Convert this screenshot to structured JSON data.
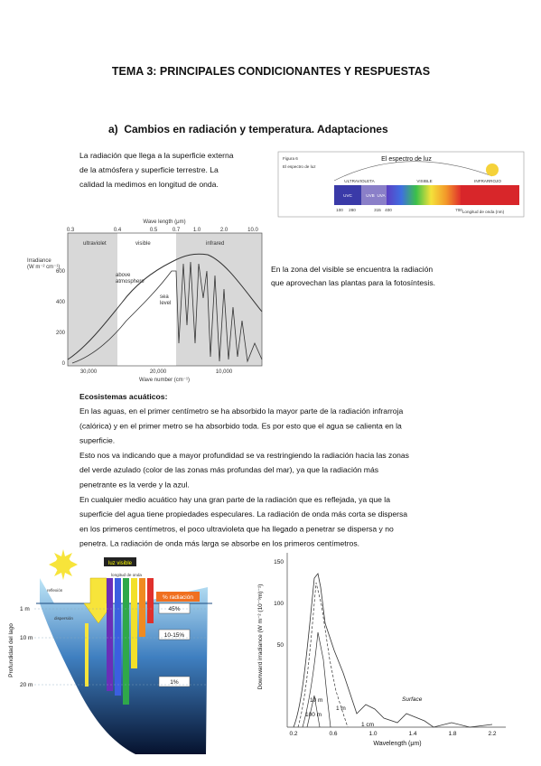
{
  "header": {
    "title": "TEMA 3: PRINCIPALES CONDICIONANTES Y RESPUESTAS"
  },
  "section": {
    "title": "a)  Cambios en radiación y temperatura. Adaptaciones"
  },
  "intro": {
    "lines": [
      "La radiación que llega a la superficie externa",
      "de la atmósfera y superficie terrestre. La",
      "calidad la medimos en longitud de onda."
    ]
  },
  "spectrum_figure": {
    "label": "Figura 6",
    "side_label": "El espectro de luz",
    "title": "El espectro de luz",
    "bands": [
      "ULTRAVIOLETA",
      "VISIBLE",
      "INFRARROJO"
    ],
    "uv_parts": [
      "UVC",
      "UVB",
      "UVA"
    ],
    "ticks": [
      "100",
      "280",
      "315",
      "400",
      "700"
    ],
    "axis_label": "Longitud de onda (nm)"
  },
  "irradiance_figure": {
    "top_axis_label": "Wave length (μm)",
    "top_ticks": [
      "0.3",
      "0.4",
      "0.5",
      "0.7",
      "1.0",
      "2.0",
      "10.0"
    ],
    "y_axis_label": [
      "Irradiance",
      "(W m⁻² cm⁻¹)"
    ],
    "y_ticks": [
      "600",
      "400",
      "200",
      "0"
    ],
    "regions": [
      "ultraviolet",
      "visible",
      "infrared"
    ],
    "curve_labels": [
      [
        "above",
        "atmosphere"
      ],
      [
        "sea",
        "level"
      ]
    ],
    "bottom_ticks": [
      "30,000",
      "20,000",
      "10,000"
    ],
    "x_axis_label": "Wave number (cm⁻¹)"
  },
  "visible_note": {
    "lines": [
      "En la zona del visible se encuentra la radiación",
      "que aprovechan las plantas para la fotosíntesis."
    ]
  },
  "aquatic": {
    "heading": "Ecosistemas acuáticos:",
    "lines": [
      "En las aguas, en el primer centímetro se ha absorbido la mayor parte de la radiación infrarroja",
      "(calórica) y en el primer metro se ha absorbido toda. Es por esto que el agua se calienta en la",
      "superficie.",
      "Esto nos va indicando que a mayor profundidad se va restringiendo la radiación hacia las zonas",
      "del verde azulado (color de las zonas más profundas del mar), ya que la radiación más",
      "penetrante es la verde y la azul.",
      "En cualquier medio acuático hay una gran parte de la radiación que es reflejada, ya que la",
      "superficie del agua tiene propiedades especulares. La radiación de onda más corta se dispersa",
      "en los primeros centímetros, el poco ultravioleta que ha llegado a penetrar se dispersa y no",
      "penetra. La radiación de onda más larga se absorbe en los primeros centímetros."
    ]
  },
  "lake_figure": {
    "light_label": "luz visible",
    "wavelength_label": "longitud de onda",
    "percent_label": "% radiación",
    "percents": [
      "45%",
      "10-15%",
      "1%"
    ],
    "depths": [
      "1 m",
      "10 m",
      "20 m"
    ],
    "depth_axis": "Profundidad del lago",
    "left_labels": [
      "reflexión",
      "dispersión"
    ]
  },
  "depth_figure": {
    "y_axis_label": "Downward irradiance (W m⁻² (10⁻⁹m)⁻¹)",
    "y_ticks": [
      "150",
      "100",
      "50"
    ],
    "x_ticks": [
      "0.2",
      "0.6",
      "1.0",
      "1.4",
      "1.8",
      "2.2"
    ],
    "x_axis_label": "Wavelength (μm)",
    "curve_labels": [
      "10 m",
      "100 m",
      "1 m",
      "1 cm",
      "Surface"
    ]
  }
}
